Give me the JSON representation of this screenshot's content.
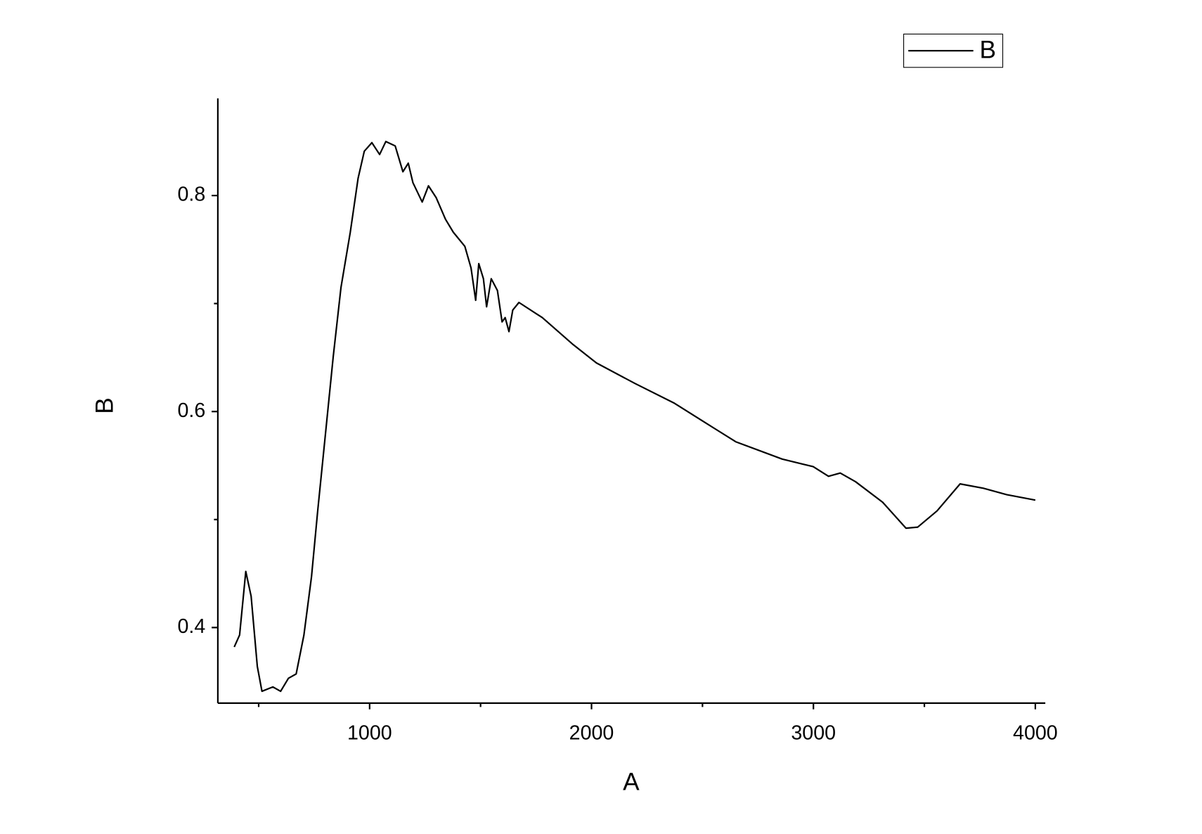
{
  "chart_data": {
    "type": "line",
    "x_label": "A",
    "y_label": "B",
    "x": [
      390,
      414,
      442,
      466,
      494,
      515,
      564,
      599,
      634,
      669,
      704,
      738,
      766,
      801,
      836,
      871,
      913,
      948,
      976,
      1010,
      1045,
      1073,
      1115,
      1150,
      1174,
      1195,
      1237,
      1265,
      1300,
      1342,
      1377,
      1429,
      1457,
      1478,
      1492,
      1513,
      1527,
      1548,
      1576,
      1597,
      1611,
      1628,
      1645,
      1673,
      1778,
      1917,
      2022,
      2196,
      2371,
      2510,
      2650,
      2859,
      2999,
      3068,
      3121,
      3190,
      3312,
      3417,
      3470,
      3557,
      3661,
      3766,
      3871,
      4000
    ],
    "series": [
      {
        "name": "B",
        "color": "#000000",
        "values": [
          0.382,
          0.393,
          0.452,
          0.429,
          0.364,
          0.341,
          0.345,
          0.341,
          0.353,
          0.357,
          0.393,
          0.447,
          0.508,
          0.579,
          0.651,
          0.715,
          0.766,
          0.816,
          0.841,
          0.849,
          0.838,
          0.85,
          0.846,
          0.822,
          0.83,
          0.812,
          0.794,
          0.809,
          0.798,
          0.778,
          0.766,
          0.753,
          0.733,
          0.703,
          0.737,
          0.723,
          0.697,
          0.723,
          0.712,
          0.683,
          0.687,
          0.674,
          0.694,
          0.701,
          0.687,
          0.662,
          0.645,
          0.626,
          0.608,
          0.59,
          0.572,
          0.556,
          0.549,
          0.54,
          0.543,
          0.535,
          0.516,
          0.492,
          0.493,
          0.508,
          0.533,
          0.529,
          0.523,
          0.518
        ]
      }
    ],
    "xlim": [
      316,
      4045
    ],
    "xticks": [
      1000,
      2000,
      3000,
      4000
    ],
    "xminorticks": [
      500,
      1500,
      2500,
      3500
    ],
    "ylim": [
      0.33,
      0.89
    ],
    "yticks": [
      0.4,
      0.6,
      0.8
    ],
    "yminorticks": [
      0.5,
      0.7
    ],
    "grid": false,
    "legend": "top-right"
  }
}
